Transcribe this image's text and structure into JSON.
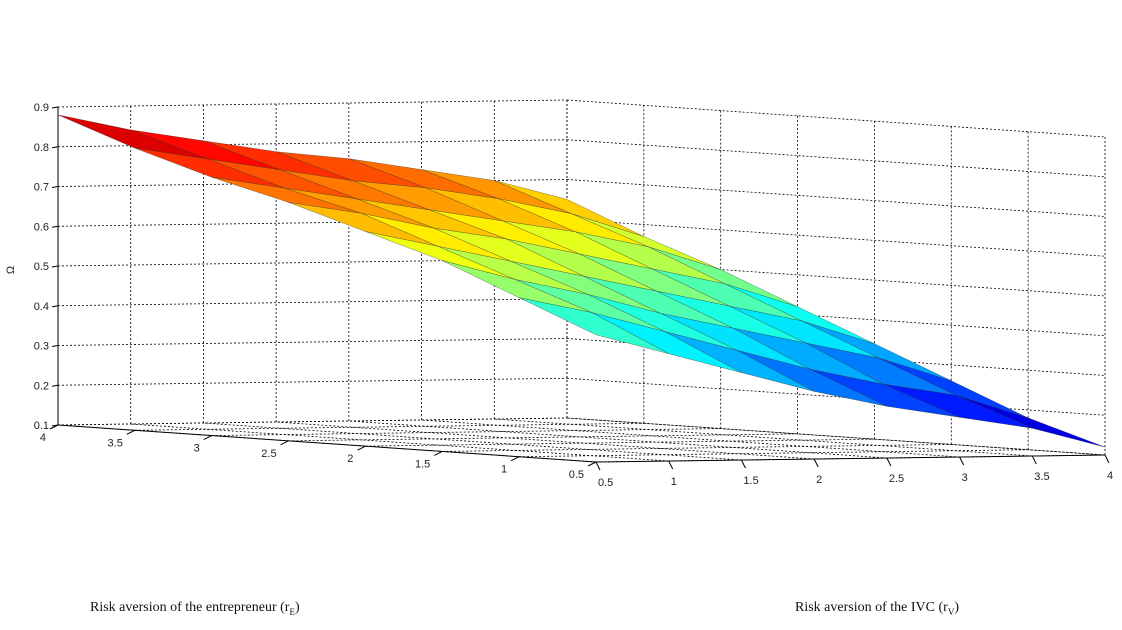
{
  "chart_data": {
    "type": "surface",
    "x_axis": {
      "ticks": [
        "0.5",
        "1",
        "1.5",
        "2",
        "2.5",
        "3",
        "3.5",
        "4"
      ]
    },
    "y_axis": {
      "ticks": [
        "0.5",
        "1",
        "1.5",
        "2",
        "2.5",
        "3",
        "3.5",
        "4"
      ]
    },
    "z_axis": {
      "label": "Ω",
      "ticks": [
        "0.1",
        "0.2",
        "0.3",
        "0.4",
        "0.5",
        "0.6",
        "0.7",
        "0.8",
        "0.9"
      ],
      "range": [
        0.1,
        0.9
      ]
    },
    "x_label": {
      "text": "Risk aversion of the IVC (r",
      "sub": "V",
      "close": ")"
    },
    "y_label": {
      "text": "Risk aversion of the entrepreneur (r",
      "sub": "E",
      "close": ")"
    },
    "grid": true,
    "colormap": "jet",
    "x_values": [
      0.5,
      1,
      1.5,
      2,
      2.5,
      3,
      3.5,
      4
    ],
    "y_values": [
      0.5,
      1,
      1.5,
      2,
      2.5,
      3,
      3.5,
      4
    ],
    "z_grid_rows_by_rE": [
      [
        0.42,
        0.37,
        0.32,
        0.27,
        0.23,
        0.2,
        0.17,
        0.12
      ],
      [
        0.5,
        0.46,
        0.41,
        0.36,
        0.31,
        0.27,
        0.24,
        0.18
      ],
      [
        0.58,
        0.53,
        0.49,
        0.44,
        0.4,
        0.36,
        0.32,
        0.26
      ],
      [
        0.64,
        0.6,
        0.56,
        0.52,
        0.48,
        0.44,
        0.4,
        0.34
      ],
      [
        0.7,
        0.67,
        0.63,
        0.6,
        0.56,
        0.52,
        0.48,
        0.42
      ],
      [
        0.75,
        0.72,
        0.69,
        0.66,
        0.63,
        0.6,
        0.56,
        0.5
      ],
      [
        0.81,
        0.78,
        0.75,
        0.72,
        0.7,
        0.67,
        0.63,
        0.57
      ],
      [
        0.88,
        0.84,
        0.81,
        0.78,
        0.76,
        0.73,
        0.7,
        0.65
      ]
    ]
  }
}
